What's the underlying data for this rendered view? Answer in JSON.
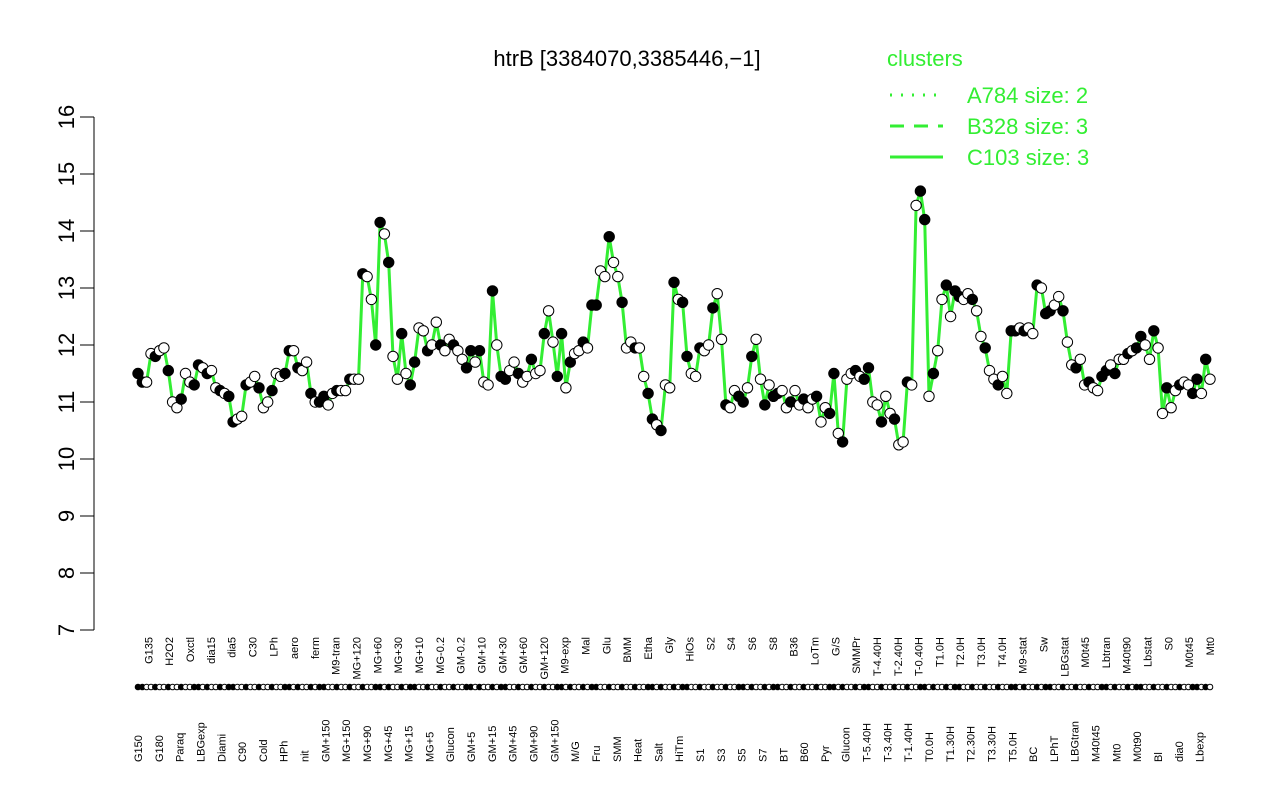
{
  "chart_data": {
    "type": "line",
    "title": "htrB [3384070,3385446,−1]",
    "ylim": [
      7,
      16
    ],
    "yticks": [
      7,
      8,
      9,
      10,
      11,
      12,
      13,
      14,
      15,
      16
    ],
    "grid": false,
    "legend": {
      "title": "clusters",
      "placement": "top-right",
      "entries": [
        {
          "label": "A784 size: 2",
          "style": "dotted"
        },
        {
          "label": "B328 size: 3",
          "style": "dashed"
        },
        {
          "label": "C103 size: 3",
          "style": "solid"
        }
      ]
    },
    "line_color": "#33ee33",
    "xlabels_top": [
      "G150",
      "G135",
      "G180",
      "H2O2",
      "Paraq",
      "Oxctl",
      "LBGexp",
      "dia15",
      "Diami",
      "dia5",
      "C90",
      "C30",
      "Cold",
      "LPh",
      "HPh",
      "aero",
      "nit",
      "ferm",
      "GM+150",
      "M9-tran",
      "MG+150",
      "MG+120",
      "MG+90",
      "MG+60",
      "MG+45",
      "MG+30",
      "MG+15",
      "MG+10",
      "MG+5",
      "MG-0.2",
      "Glucon",
      "GM-0.2",
      "GM+5",
      "GM+10",
      "GM+15",
      "GM+30",
      "GM+45",
      "GM+60",
      "GM+90",
      "GM+120",
      "GM+150",
      "M9-exp",
      "M/G",
      "Mal",
      "Fru",
      "Glu",
      "SMM",
      "BMM",
      "Heat",
      "Etha",
      "Salt",
      "Gly",
      "HiTm",
      "HiOs",
      "S1",
      "S2",
      "S3",
      "S4",
      "S5",
      "S6",
      "S7",
      "S8",
      "BT",
      "B36",
      "B60",
      "LoTm",
      "Pyr",
      "G/S",
      "Glucon",
      "SMMPr",
      "T-5.40H",
      "T-4.40H",
      "T-3.40H",
      "T-2.40H",
      "T-1.40H",
      "T-0.40H",
      "T0.0H",
      "T1.0H",
      "T1.30H",
      "T2.0H",
      "T2.30H",
      "T3.0H",
      "T3.30H",
      "T4.0H",
      "T5.0H",
      "M9-stat",
      "BC",
      "Sw",
      "LPhT",
      "LBGstat",
      "LBGtran",
      "M0t45",
      "M40t45",
      "Lbtran",
      "Mt0",
      "M40t90",
      "M0t90",
      "Lbstat",
      "Bl",
      "S0",
      "dia0",
      "M0t45",
      "Lbexp",
      "Mt0"
    ],
    "series": [
      {
        "values": [
          11.5,
          11.35,
          11.35,
          11.85,
          11.8,
          11.9,
          11.95,
          11.55,
          11.0,
          10.9,
          11.05,
          11.5,
          11.35,
          11.3,
          11.65,
          11.6,
          11.5,
          11.55,
          11.25,
          11.2,
          11.15,
          11.1,
          10.65,
          10.7,
          10.75,
          11.3,
          11.35,
          11.45,
          11.25,
          10.9,
          11.0,
          11.2,
          11.5,
          11.45,
          11.5,
          11.9,
          11.9,
          11.6,
          11.55,
          11.7,
          11.15,
          11.0,
          11.0,
          11.1,
          10.95,
          11.15,
          11.2,
          11.2,
          11.2,
          11.4,
          11.4,
          11.4,
          13.25,
          13.2,
          12.8,
          12.0,
          14.15,
          13.95,
          13.45,
          11.8,
          11.4,
          12.2,
          11.5,
          11.3,
          11.7,
          12.3,
          12.25,
          11.9,
          12.0,
          12.4,
          12.0,
          11.9,
          12.1,
          12.0,
          11.9,
          11.75,
          11.6,
          11.9,
          11.7,
          11.9,
          11.35,
          11.3,
          12.95,
          12.0,
          11.45,
          11.4,
          11.55,
          11.7,
          11.5,
          11.35,
          11.45,
          11.75,
          11.5,
          11.55,
          12.2,
          12.6,
          12.05,
          11.45,
          12.2,
          11.25,
          11.7,
          11.85,
          11.9,
          12.05,
          11.95,
          12.7,
          12.7,
          13.3,
          13.2,
          13.9,
          13.45,
          13.2,
          12.75,
          11.95,
          12.05,
          11.95,
          11.95,
          11.45,
          11.15,
          10.7,
          10.6,
          10.5,
          11.3,
          11.25,
          13.1,
          12.8,
          12.75,
          11.8,
          11.5,
          11.45,
          11.95,
          11.9,
          12.0,
          12.65,
          12.9,
          12.1,
          10.95,
          10.9,
          11.2,
          11.1,
          11.0,
          11.25,
          11.8,
          12.1,
          11.4,
          10.95,
          11.3,
          11.1,
          11.15,
          11.2,
          10.9,
          11.0,
          11.2,
          10.95,
          11.05,
          10.9,
          11.05,
          11.1,
          10.65,
          10.9,
          10.8,
          11.5,
          10.45,
          10.3,
          11.4,
          11.5,
          11.55,
          11.45,
          11.4,
          11.6,
          11.0,
          10.95,
          10.65,
          11.1,
          10.8,
          10.7,
          10.25,
          10.3,
          11.35,
          11.3,
          14.45,
          14.7,
          14.2,
          11.1,
          11.5,
          11.9,
          12.8,
          13.05,
          12.5,
          12.95,
          12.85,
          12.8,
          12.9,
          12.8,
          12.6,
          12.15,
          11.95,
          11.55,
          11.4,
          11.3,
          11.45,
          11.15,
          12.25,
          12.25,
          12.3,
          12.25,
          12.3,
          12.2,
          13.05,
          13.0,
          12.55,
          12.6,
          12.7,
          12.85,
          12.6,
          12.05,
          11.65,
          11.6,
          11.75,
          11.3,
          11.35,
          11.25,
          11.2,
          11.45,
          11.55,
          11.65,
          11.5,
          11.75,
          11.75,
          11.85,
          11.9,
          11.95,
          12.15,
          12.0,
          11.75,
          12.25,
          11.95,
          10.8,
          11.25,
          10.9,
          11.2,
          11.3,
          11.35,
          11.3,
          11.15,
          11.4,
          11.15,
          11.75,
          11.4
        ]
      }
    ]
  }
}
